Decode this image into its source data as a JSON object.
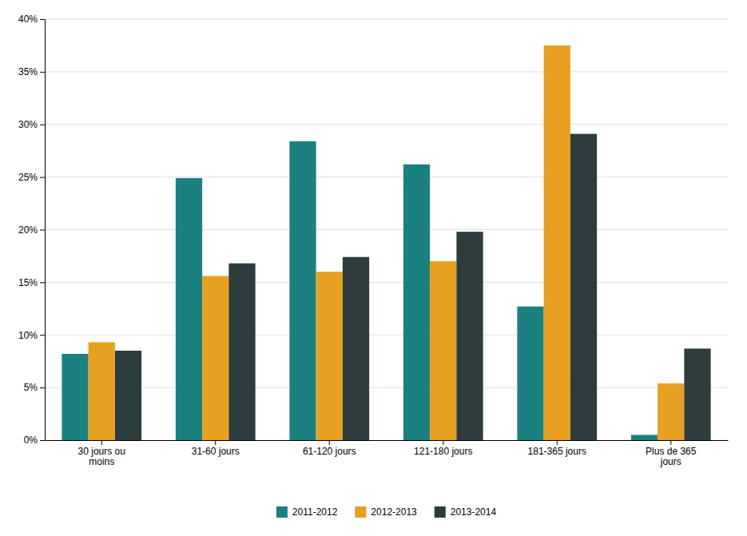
{
  "chart_data": {
    "type": "bar",
    "categories": [
      "30 jours ou\nmoins",
      "31-60 jours",
      "61-120 jours",
      "121-180 jours",
      "181-365 jours",
      "Plus de 365\njours"
    ],
    "series": [
      {
        "name": "2011-2012",
        "color": "#1a8080",
        "values": [
          8.2,
          24.9,
          28.4,
          26.2,
          12.7,
          0.5
        ]
      },
      {
        "name": "2012-2013",
        "color": "#e8a020",
        "values": [
          9.3,
          15.6,
          16.0,
          17.0,
          37.5,
          5.4
        ]
      },
      {
        "name": "2013-2014",
        "color": "#2d3d3d",
        "values": [
          8.5,
          16.8,
          17.4,
          19.8,
          29.1,
          8.7
        ]
      }
    ],
    "ylim": [
      0,
      40
    ],
    "yticks": [
      {
        "value": 0,
        "label": "0%"
      },
      {
        "value": 5,
        "label": "5%"
      },
      {
        "value": 10,
        "label": "10%"
      },
      {
        "value": 15,
        "label": "15%"
      },
      {
        "value": 20,
        "label": "20%"
      },
      {
        "value": 25,
        "label": "25%"
      },
      {
        "value": 30,
        "label": "30%"
      },
      {
        "value": 35,
        "label": "35%"
      },
      {
        "value": 40,
        "label": "40%"
      }
    ],
    "grid": true,
    "legend": "bottom"
  }
}
